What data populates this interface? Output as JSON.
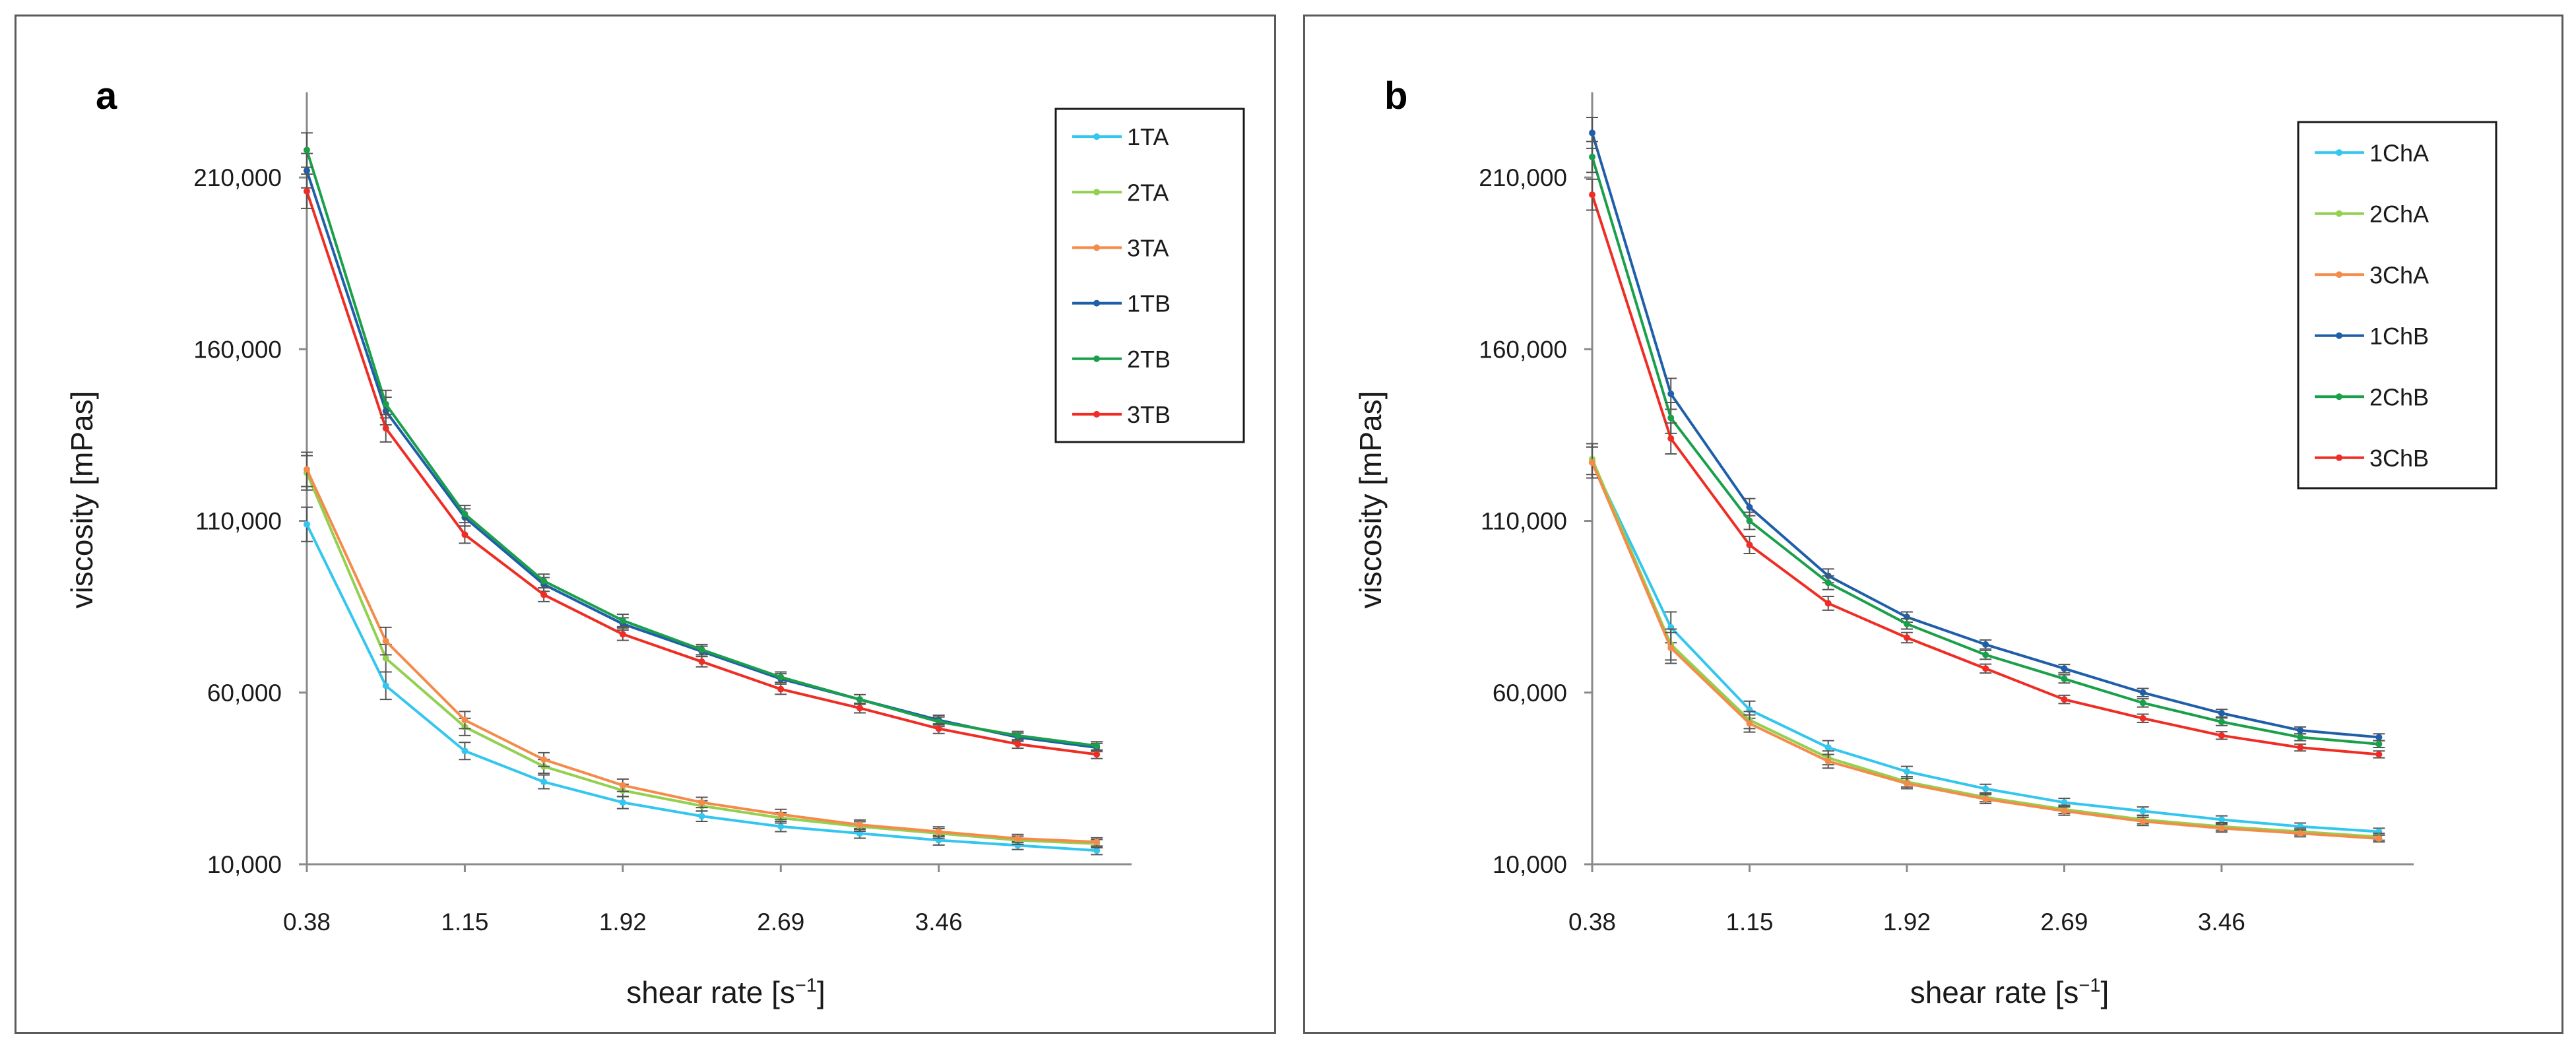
{
  "chart_data": [
    {
      "type": "line",
      "panel_label": "a",
      "xlabel": "shear rate [s",
      "xlabel_sup": "−1",
      "xlabel_end": "]",
      "ylabel": "viscosity  [mPas]",
      "ylim": [
        10000,
        230000
      ],
      "xlim": [
        0.38,
        4.4
      ],
      "x_ticks": [
        0.38,
        1.15,
        1.92,
        2.69,
        3.46
      ],
      "x_tick_labels": [
        "0.38",
        "1.15",
        "1.92",
        "2.69",
        "3.46"
      ],
      "y_ticks": [
        10000,
        60000,
        110000,
        160000,
        210000
      ],
      "y_tick_labels": [
        "10,000",
        "60,000",
        "110,000",
        "160,000",
        "210,000"
      ],
      "x": [
        0.38,
        0.765,
        1.15,
        1.535,
        1.92,
        2.305,
        2.69,
        3.075,
        3.46,
        3.845,
        4.23
      ],
      "series": [
        {
          "name": "1TA",
          "color": "#33c6ee",
          "values": [
            109000,
            62000,
            43000,
            34000,
            28000,
            24000,
            21000,
            19000,
            17000,
            15500,
            14000
          ]
        },
        {
          "name": "2TA",
          "color": "#92d050",
          "values": [
            124000,
            70000,
            50000,
            38500,
            31500,
            27000,
            23500,
            21000,
            19000,
            17000,
            16000
          ]
        },
        {
          "name": "3TA",
          "color": "#f58b4a",
          "values": [
            125000,
            75000,
            52000,
            40500,
            33000,
            28000,
            24500,
            21500,
            19500,
            17500,
            16500
          ]
        },
        {
          "name": "1TB",
          "color": "#1f5fa9",
          "values": [
            212000,
            142000,
            111000,
            91500,
            80000,
            72000,
            64000,
            58000,
            52000,
            47000,
            44000
          ]
        },
        {
          "name": "2TB",
          "color": "#1aa04a",
          "values": [
            218000,
            144000,
            112000,
            92500,
            81000,
            72500,
            64500,
            58000,
            51500,
            47500,
            44500
          ]
        },
        {
          "name": "3TB",
          "color": "#ef2d24",
          "values": [
            206000,
            137000,
            106000,
            88500,
            77000,
            69000,
            61000,
            55500,
            49500,
            45000,
            42000
          ]
        }
      ],
      "error_bar": [
        5000,
        4000,
        2500,
        2000,
        1800,
        1500,
        1500,
        1400,
        1400,
        1200,
        1200
      ]
    },
    {
      "type": "line",
      "panel_label": "b",
      "xlabel": "shear rate [s",
      "xlabel_sup": "−1",
      "xlabel_end": "]",
      "ylabel": "viscosity  [mPas]",
      "ylim": [
        10000,
        230000
      ],
      "xlim": [
        0.38,
        4.4
      ],
      "x_ticks": [
        0.38,
        1.15,
        1.92,
        2.69,
        3.46
      ],
      "x_tick_labels": [
        "0.38",
        "1.15",
        "1.92",
        "2.69",
        "3.46"
      ],
      "y_ticks": [
        10000,
        60000,
        110000,
        160000,
        210000
      ],
      "y_tick_labels": [
        "10,000",
        "60,000",
        "110,000",
        "160,000",
        "210,000"
      ],
      "x": [
        0.38,
        0.765,
        1.15,
        1.535,
        1.92,
        2.305,
        2.69,
        3.075,
        3.46,
        3.845,
        4.23
      ],
      "series": [
        {
          "name": "1ChA",
          "color": "#33c6ee",
          "values": [
            127000,
            79000,
            55000,
            44000,
            37000,
            32000,
            28000,
            25500,
            23000,
            21000,
            19500
          ]
        },
        {
          "name": "2ChA",
          "color": "#92d050",
          "values": [
            128000,
            74000,
            52000,
            41000,
            34000,
            29500,
            26000,
            23000,
            21000,
            19500,
            18000
          ]
        },
        {
          "name": "3ChA",
          "color": "#f58b4a",
          "values": [
            127000,
            73000,
            51000,
            40000,
            33500,
            29000,
            25500,
            22500,
            20500,
            19000,
            17500
          ]
        },
        {
          "name": "1ChB",
          "color": "#1f5fa9",
          "values": [
            223000,
            147000,
            114000,
            94000,
            82000,
            74000,
            67000,
            60000,
            54000,
            49000,
            47000
          ]
        },
        {
          "name": "2ChB",
          "color": "#1aa04a",
          "values": [
            216000,
            140000,
            110000,
            92000,
            80000,
            71000,
            64000,
            57000,
            51500,
            47000,
            45000
          ]
        },
        {
          "name": "3ChB",
          "color": "#ef2d24",
          "values": [
            205000,
            134000,
            103000,
            86000,
            76000,
            67000,
            58000,
            52500,
            47500,
            44000,
            42000
          ]
        }
      ],
      "error_bar": [
        4500,
        4500,
        2500,
        2000,
        1500,
        1300,
        1200,
        1200,
        1100,
        1000,
        1000
      ]
    }
  ]
}
